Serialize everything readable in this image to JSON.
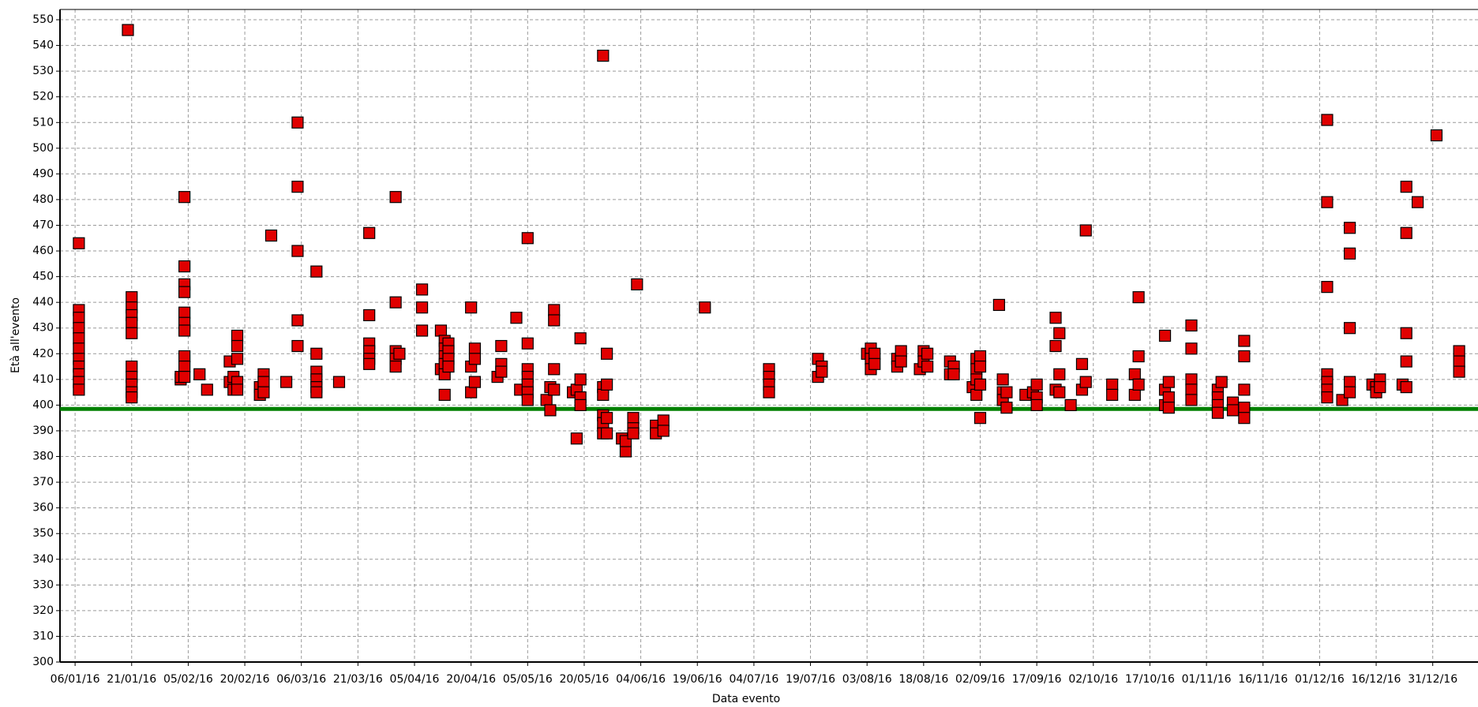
{
  "chart_data": {
    "type": "scatter",
    "x_label": "Data evento",
    "y_label": "Età all'evento",
    "xlim": [
      "02/01/16",
      "12/01/17"
    ],
    "xticks": [
      "06/01/16",
      "21/01/16",
      "05/02/16",
      "20/02/16",
      "06/03/16",
      "21/03/16",
      "05/04/16",
      "20/04/16",
      "05/05/16",
      "20/05/16",
      "04/06/16",
      "19/06/16",
      "04/07/16",
      "19/07/16",
      "03/08/16",
      "18/08/16",
      "02/09/16",
      "17/09/16",
      "02/10/16",
      "17/10/16",
      "01/11/16",
      "16/11/16",
      "01/12/16",
      "16/12/16",
      "31/12/16"
    ],
    "ylim": [
      300,
      554
    ],
    "yticks": [
      300,
      310,
      320,
      330,
      340,
      350,
      360,
      370,
      380,
      390,
      400,
      410,
      420,
      430,
      440,
      450,
      460,
      470,
      480,
      490,
      500,
      510,
      520,
      530,
      540,
      550
    ],
    "grid": true,
    "reference_line": {
      "value": 398.5,
      "color": "#008000"
    },
    "series": [
      {
        "color": "#e00000",
        "x": [
          "07/01/16",
          "07/01/16",
          "07/01/16",
          "07/01/16",
          "07/01/16",
          "07/01/16",
          "07/01/16",
          "07/01/16",
          "07/01/16",
          "07/01/16",
          "07/01/16",
          "20/01/16",
          "21/01/16",
          "21/01/16",
          "21/01/16",
          "21/01/16",
          "21/01/16",
          "21/01/16",
          "21/01/16",
          "21/01/16",
          "21/01/16",
          "21/01/16",
          "03/02/16",
          "03/02/16",
          "04/02/16",
          "04/02/16",
          "04/02/16",
          "04/02/16",
          "04/02/16",
          "04/02/16",
          "04/02/16",
          "04/02/16",
          "04/02/16",
          "04/02/16",
          "08/02/16",
          "10/02/16",
          "16/02/16",
          "16/02/16",
          "17/02/16",
          "17/02/16",
          "18/02/16",
          "18/02/16",
          "18/02/16",
          "18/02/16",
          "18/02/16",
          "24/02/16",
          "24/02/16",
          "25/02/16",
          "25/02/16",
          "25/02/16",
          "27/02/16",
          "02/03/16",
          "05/03/16",
          "05/03/16",
          "05/03/16",
          "05/03/16",
          "05/03/16",
          "10/03/16",
          "10/03/16",
          "10/03/16",
          "10/03/16",
          "10/03/16",
          "10/03/16",
          "16/03/16",
          "24/03/16",
          "24/03/16",
          "24/03/16",
          "24/03/16",
          "24/03/16",
          "24/03/16",
          "31/03/16",
          "31/03/16",
          "31/03/16",
          "31/03/16",
          "31/03/16",
          "01/04/16",
          "07/04/16",
          "07/04/16",
          "07/04/16",
          "12/04/16",
          "12/04/16",
          "13/04/16",
          "13/04/16",
          "13/04/16",
          "13/04/16",
          "13/04/16",
          "13/04/16",
          "14/04/16",
          "14/04/16",
          "14/04/16",
          "14/04/16",
          "20/04/16",
          "20/04/16",
          "20/04/16",
          "21/04/16",
          "21/04/16",
          "21/04/16",
          "27/04/16",
          "28/04/16",
          "28/04/16",
          "28/04/16",
          "02/05/16",
          "03/05/16",
          "05/05/16",
          "05/05/16",
          "05/05/16",
          "05/05/16",
          "05/05/16",
          "05/05/16",
          "05/05/16",
          "10/05/16",
          "11/05/16",
          "11/05/16",
          "12/05/16",
          "12/05/16",
          "12/05/16",
          "12/05/16",
          "17/05/16",
          "18/05/16",
          "18/05/16",
          "19/05/16",
          "19/05/16",
          "19/05/16",
          "19/05/16",
          "25/05/16",
          "25/05/16",
          "25/05/16",
          "25/05/16",
          "25/05/16",
          "25/05/16",
          "26/05/16",
          "26/05/16",
          "26/05/16",
          "26/05/16",
          "30/05/16",
          "31/05/16",
          "31/05/16",
          "02/06/16",
          "02/06/16",
          "02/06/16",
          "03/06/16",
          "08/06/16",
          "08/06/16",
          "10/06/16",
          "10/06/16",
          "21/06/16",
          "08/07/16",
          "08/07/16",
          "08/07/16",
          "08/07/16",
          "21/07/16",
          "21/07/16",
          "22/07/16",
          "22/07/16",
          "03/08/16",
          "04/08/16",
          "04/08/16",
          "04/08/16",
          "05/08/16",
          "05/08/16",
          "11/08/16",
          "11/08/16",
          "12/08/16",
          "12/08/16",
          "17/08/16",
          "18/08/16",
          "18/08/16",
          "19/08/16",
          "19/08/16",
          "25/08/16",
          "25/08/16",
          "26/08/16",
          "26/08/16",
          "31/08/16",
          "01/09/16",
          "01/09/16",
          "01/09/16",
          "01/09/16",
          "02/09/16",
          "02/09/16",
          "02/09/16",
          "02/09/16",
          "07/09/16",
          "08/09/16",
          "08/09/16",
          "08/09/16",
          "09/09/16",
          "09/09/16",
          "14/09/16",
          "16/09/16",
          "17/09/16",
          "17/09/16",
          "17/09/16",
          "22/09/16",
          "22/09/16",
          "22/09/16",
          "23/09/16",
          "23/09/16",
          "23/09/16",
          "26/09/16",
          "29/09/16",
          "29/09/16",
          "30/09/16",
          "30/09/16",
          "07/10/16",
          "07/10/16",
          "13/10/16",
          "13/10/16",
          "14/10/16",
          "14/10/16",
          "14/10/16",
          "21/10/16",
          "21/10/16",
          "21/10/16",
          "22/10/16",
          "22/10/16",
          "22/10/16",
          "28/10/16",
          "28/10/16",
          "28/10/16",
          "28/10/16",
          "28/10/16",
          "04/11/16",
          "04/11/16",
          "04/11/16",
          "04/11/16",
          "05/11/16",
          "08/11/16",
          "08/11/16",
          "11/11/16",
          "11/11/16",
          "11/11/16",
          "11/11/16",
          "11/11/16",
          "03/12/16",
          "03/12/16",
          "03/12/16",
          "03/12/16",
          "03/12/16",
          "03/12/16",
          "03/12/16",
          "07/12/16",
          "09/12/16",
          "09/12/16",
          "09/12/16",
          "09/12/16",
          "09/12/16",
          "15/12/16",
          "16/12/16",
          "16/12/16",
          "17/12/16",
          "17/12/16",
          "23/12/16",
          "24/12/16",
          "24/12/16",
          "24/12/16",
          "24/12/16",
          "24/12/16",
          "27/12/16",
          "01/01/17",
          "07/01/17",
          "07/01/17",
          "07/01/17"
        ],
        "values": [
          463,
          437,
          434,
          430,
          426,
          422,
          418,
          415,
          412,
          409,
          406,
          546,
          442,
          438,
          435,
          432,
          428,
          415,
          411,
          408,
          405,
          403,
          410,
          411,
          481,
          454,
          447,
          444,
          436,
          432,
          429,
          419,
          415,
          411,
          412,
          406,
          417,
          409,
          411,
          406,
          427,
          423,
          418,
          409,
          406,
          407,
          404,
          412,
          409,
          405,
          466,
          409,
          510,
          485,
          460,
          433,
          423,
          452,
          420,
          413,
          410,
          407,
          405,
          409,
          467,
          435,
          424,
          421,
          418,
          416,
          481,
          440,
          421,
          418,
          415,
          420,
          445,
          438,
          429,
          429,
          414,
          425,
          422,
          419,
          416,
          412,
          404,
          424,
          421,
          418,
          415,
          438,
          415,
          405,
          422,
          418,
          409,
          411,
          423,
          416,
          413,
          434,
          406,
          465,
          424,
          414,
          411,
          408,
          405,
          402,
          402,
          407,
          398,
          437,
          433,
          414,
          406,
          405,
          387,
          406,
          426,
          410,
          403,
          400,
          536,
          407,
          404,
          396,
          393,
          389,
          420,
          408,
          395,
          389,
          387,
          382,
          386,
          395,
          391,
          389,
          447,
          392,
          389,
          394,
          390,
          438,
          414,
          411,
          408,
          405,
          418,
          411,
          415,
          413,
          420,
          422,
          418,
          414,
          420,
          416,
          418,
          415,
          421,
          417,
          414,
          421,
          417,
          420,
          415,
          417,
          412,
          415,
          412,
          407,
          418,
          414,
          410,
          404,
          419,
          415,
          408,
          395,
          439,
          410,
          405,
          402,
          405,
          399,
          404,
          405,
          408,
          403,
          400,
          434,
          423,
          406,
          428,
          412,
          405,
          400,
          416,
          406,
          468,
          409,
          408,
          404,
          412,
          404,
          442,
          419,
          408,
          427,
          406,
          400,
          409,
          403,
          399,
          431,
          422,
          410,
          406,
          402,
          406,
          403,
          400,
          397,
          409,
          401,
          398,
          425,
          419,
          406,
          399,
          395,
          511,
          479,
          446,
          412,
          409,
          406,
          403,
          402,
          469,
          459,
          430,
          409,
          405,
          408,
          407,
          405,
          410,
          407,
          408,
          485,
          467,
          428,
          417,
          407,
          479,
          505,
          421,
          417,
          413
        ]
      }
    ]
  }
}
